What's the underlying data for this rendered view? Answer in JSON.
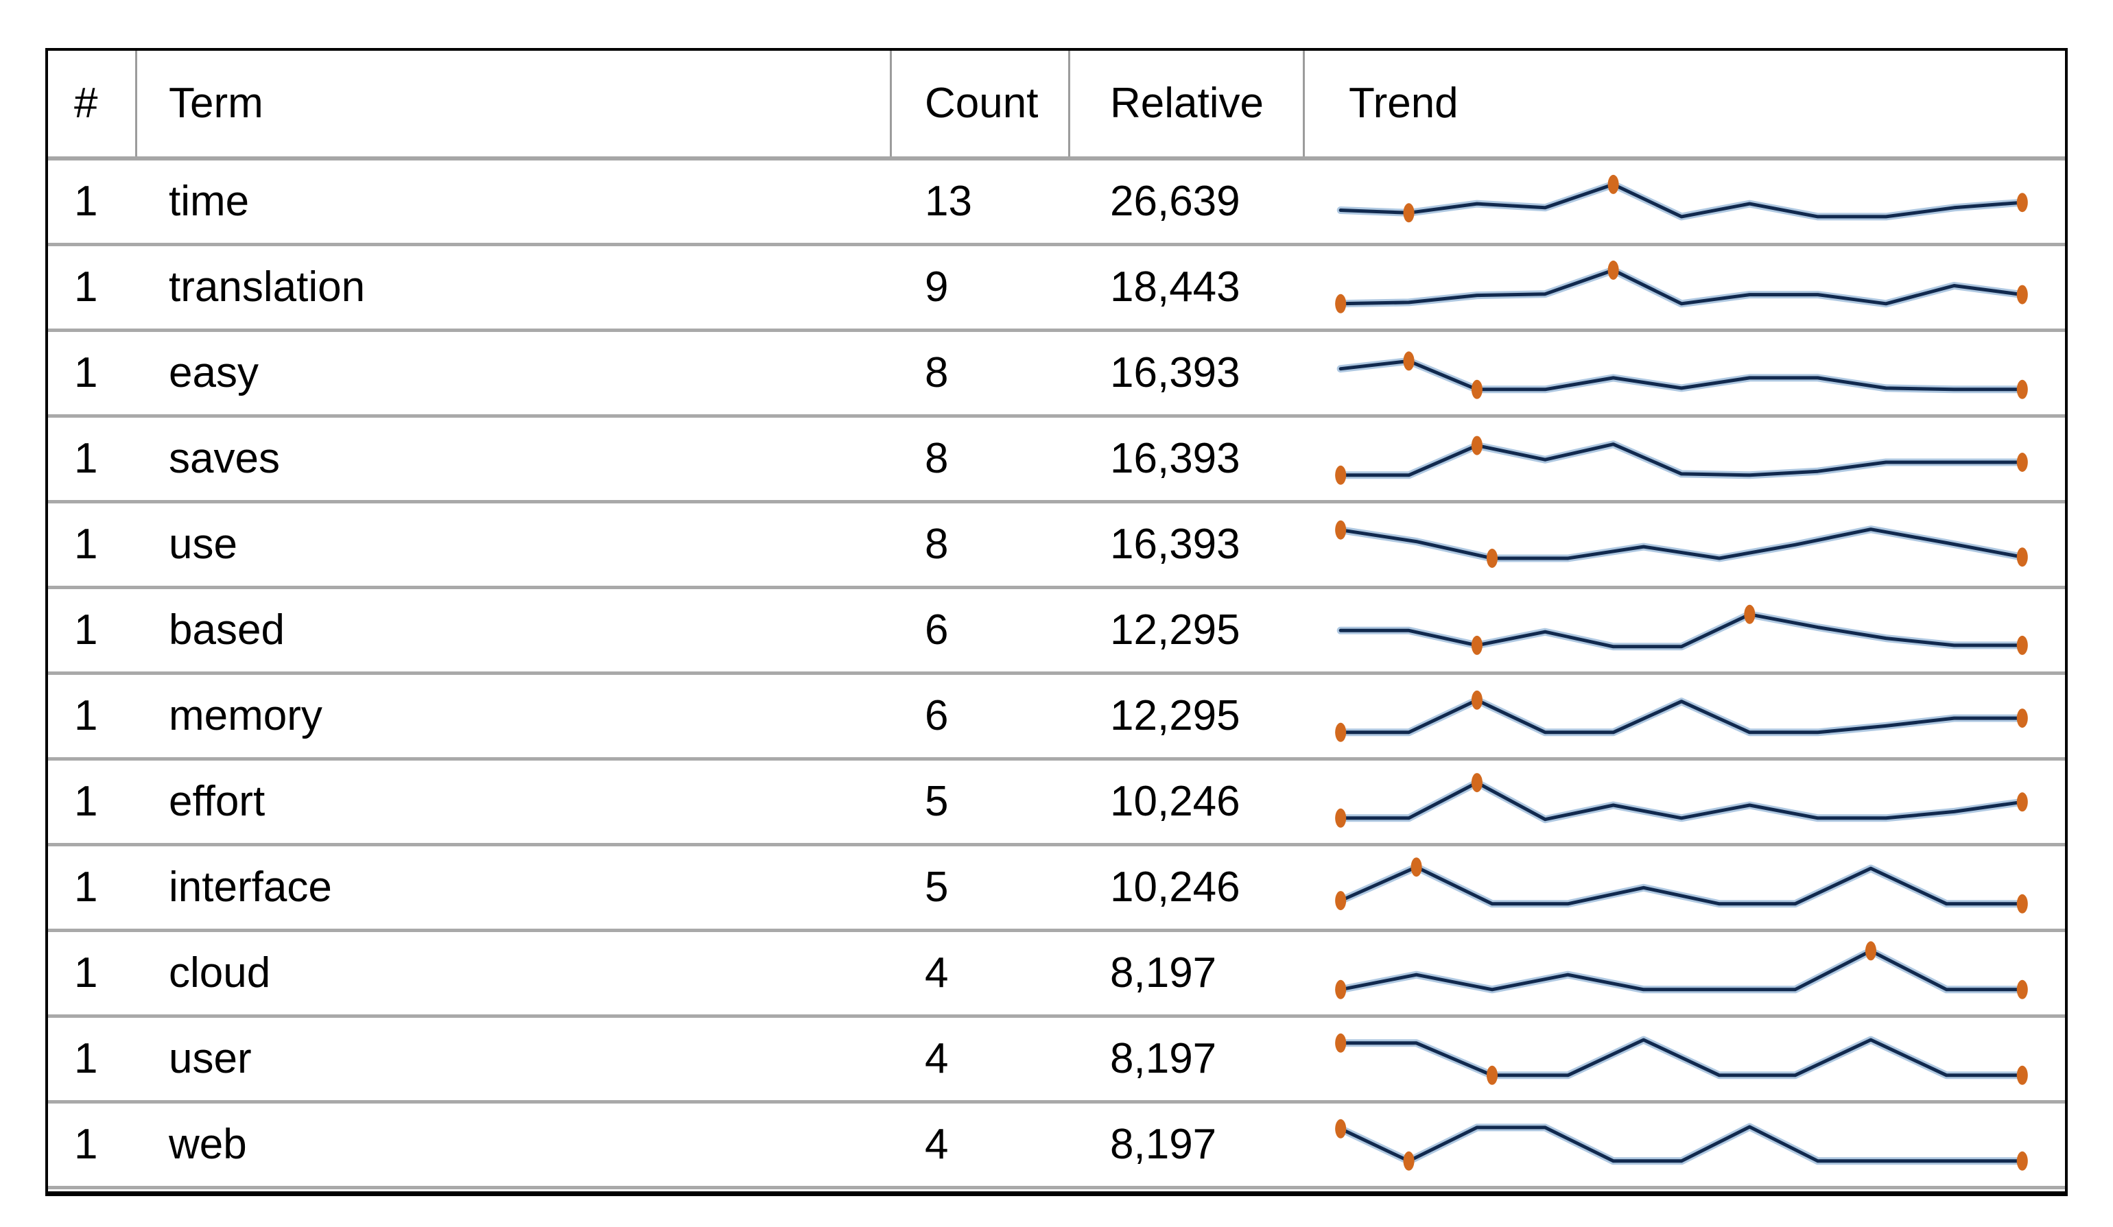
{
  "page_title": "Term frequency table with trend sparklines",
  "colors": {
    "outer_border": "#000000",
    "row_separator": "#a9a9a9",
    "header_separator": "#a6a6a6",
    "header_cell_divider": "#9c9c9c",
    "text": "#000000",
    "sparkline_core": "#11294e",
    "sparkline_halo": "#6d9bc8",
    "marker": "#d2691e"
  },
  "table": {
    "columns": [
      "#",
      "Term",
      "Count",
      "Relative",
      "Trend"
    ],
    "rows": [
      {
        "rank": "1",
        "term": "time",
        "count": "13",
        "relative": "26,639"
      },
      {
        "rank": "1",
        "term": "translation",
        "count": "9",
        "relative": "18,443"
      },
      {
        "rank": "1",
        "term": "easy",
        "count": "8",
        "relative": "16,393"
      },
      {
        "rank": "1",
        "term": "saves",
        "count": "8",
        "relative": "16,393"
      },
      {
        "rank": "1",
        "term": "use",
        "count": "8",
        "relative": "16,393"
      },
      {
        "rank": "1",
        "term": "based",
        "count": "6",
        "relative": "12,295"
      },
      {
        "rank": "1",
        "term": "memory",
        "count": "6",
        "relative": "12,295"
      },
      {
        "rank": "1",
        "term": "effort",
        "count": "5",
        "relative": "10,246"
      },
      {
        "rank": "1",
        "term": "interface",
        "count": "5",
        "relative": "10,246"
      },
      {
        "rank": "1",
        "term": "cloud",
        "count": "4",
        "relative": "8,197"
      },
      {
        "rank": "1",
        "term": "user",
        "count": "4",
        "relative": "8,197"
      },
      {
        "rank": "1",
        "term": "web",
        "count": "4",
        "relative": "8,197"
      }
    ]
  },
  "chart_data": {
    "type": "line",
    "description": "One sparkline per table row; values are visual estimates on a 0-10 vertical scale (10 = top), marker_indices are the orange dot positions",
    "line_color": "#11294e",
    "marker_color": "#d2691e",
    "sparklines": [
      {
        "term": "time",
        "values": [
          4.2,
          3.8,
          5.2,
          4.6,
          8.2,
          3.2,
          5.2,
          3.2,
          3.2,
          4.6,
          5.4
        ],
        "marker_indices": [
          1,
          4,
          10
        ]
      },
      {
        "term": "translation",
        "values": [
          3,
          3.2,
          4.3,
          4.5,
          8.2,
          3,
          4.4,
          4.4,
          3,
          5.8,
          4.4
        ],
        "marker_indices": [
          0,
          4,
          10
        ]
      },
      {
        "term": "easy",
        "values": [
          6.2,
          7.4,
          3,
          3,
          4.8,
          3.2,
          4.8,
          4.8,
          3.2,
          3,
          3
        ],
        "marker_indices": [
          1,
          2,
          10
        ]
      },
      {
        "term": "saves",
        "values": [
          3,
          3,
          7.6,
          5.4,
          7.8,
          3.2,
          3,
          3.6,
          5,
          5,
          5
        ],
        "marker_indices": [
          0,
          2,
          10
        ]
      },
      {
        "term": "use",
        "values": [
          7.8,
          6,
          3.4,
          3.4,
          5.2,
          3.4,
          5.5,
          7.9,
          5.8,
          3.6
        ],
        "marker_indices": [
          0,
          2,
          9
        ]
      },
      {
        "term": "based",
        "values": [
          5.5,
          5.5,
          3.2,
          5.3,
          3,
          3,
          8,
          6,
          4.3,
          3.2,
          3.2
        ],
        "marker_indices": [
          2,
          6,
          10
        ]
      },
      {
        "term": "memory",
        "values": [
          3,
          3,
          8,
          3,
          3,
          7.8,
          3,
          3,
          4,
          5.2,
          5.2
        ],
        "marker_indices": [
          0,
          2,
          10
        ]
      },
      {
        "term": "effort",
        "values": [
          3,
          3,
          8.5,
          2.8,
          5,
          3,
          5,
          3,
          3,
          4,
          5.5
        ],
        "marker_indices": [
          0,
          2,
          10
        ]
      },
      {
        "term": "interface",
        "values": [
          3.5,
          8.7,
          3,
          3,
          5.5,
          3,
          3,
          8.5,
          3,
          3
        ],
        "marker_indices": [
          0,
          1,
          9
        ]
      },
      {
        "term": "cloud",
        "values": [
          3,
          5.3,
          3,
          5.3,
          3,
          3,
          3,
          9,
          3,
          3
        ],
        "marker_indices": [
          0,
          7,
          9
        ]
      },
      {
        "term": "user",
        "values": [
          8,
          8,
          3,
          3,
          8.5,
          3,
          3,
          8.5,
          3,
          3
        ],
        "marker_indices": [
          0,
          2,
          9
        ]
      },
      {
        "term": "web",
        "values": [
          8,
          3,
          8.2,
          8.2,
          3,
          3,
          8.3,
          3,
          3,
          3,
          3
        ],
        "marker_indices": [
          0,
          1,
          10
        ]
      }
    ]
  }
}
